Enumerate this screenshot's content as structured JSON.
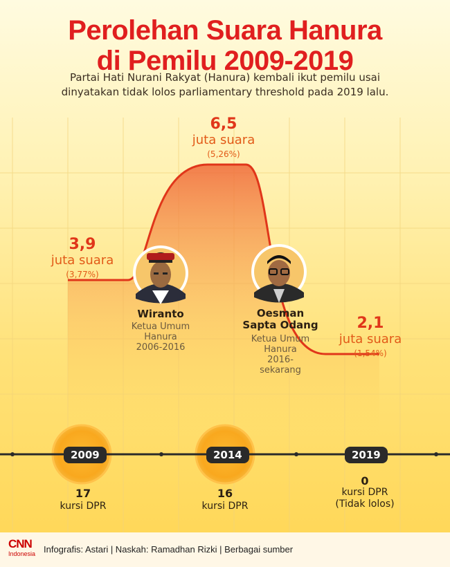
{
  "title_line1": "Perolehan Suara Hanura",
  "title_line2": "di Pemilu 2009-2019",
  "subtitle_line1": "Partai Hati Nurani Rakyat (Hanura) kembali ikut pemilu usai",
  "subtitle_line2": "dinyatakan tidak lolos parliamentary threshold pada 2019 lalu.",
  "colors": {
    "accent_red": "#e0361a",
    "area_top": "#f06a3a",
    "badge_dark": "#2a2a2a",
    "circle_orange": "#f9a81e"
  },
  "chart_data": {
    "type": "area",
    "x": [
      "2009",
      "2014",
      "2019"
    ],
    "values": [
      3.9,
      6.5,
      2.1
    ],
    "units": "juta suara",
    "percentages": [
      "3,77%",
      "5,26%",
      "1,54%"
    ],
    "labels": [
      {
        "num": "3,9",
        "unit": "juta suara",
        "pct": "(3,77%)"
      },
      {
        "num": "6,5",
        "unit": "juta suara",
        "pct": "(5,26%)"
      },
      {
        "num": "2,1",
        "unit": "juta suara",
        "pct": "(1,54%)"
      }
    ],
    "seats": [
      {
        "year": "2009",
        "count": "17",
        "label": "kursi DPR",
        "note": ""
      },
      {
        "year": "2014",
        "count": "16",
        "label": "kursi DPR",
        "note": ""
      },
      {
        "year": "2019",
        "count": "0",
        "label": "kursi DPR",
        "note": "(Tidak lolos)"
      }
    ]
  },
  "people": [
    {
      "name": "Wiranto",
      "name2": "",
      "role1": "Ketua Umum",
      "role2": "Hanura",
      "role3": "2006-2016",
      "role4": ""
    },
    {
      "name": "Oesman",
      "name2": "Sapta Odang",
      "role1": "Ketua Umum",
      "role2": "Hanura",
      "role3": "2016-",
      "role4": "sekarang"
    }
  ],
  "footer": {
    "logo_top": "CNN",
    "logo_bottom": "Indonesia",
    "credit": "Infografis: Astari | Naskah: Ramadhan Rizki | Berbagai sumber"
  }
}
